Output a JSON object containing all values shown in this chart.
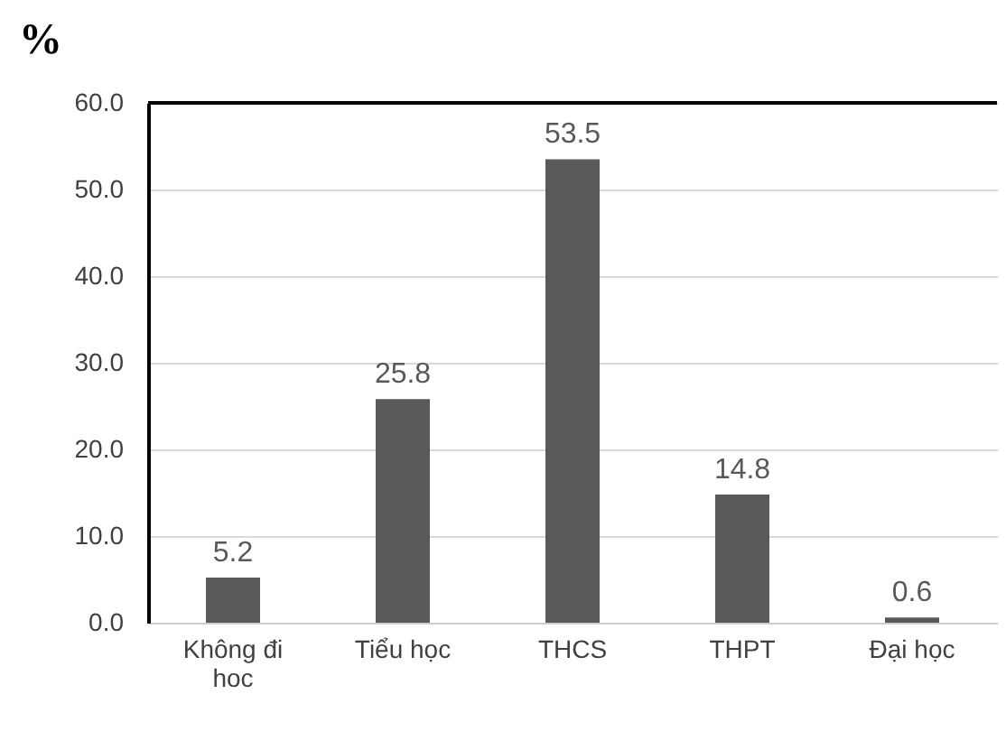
{
  "chart_data": {
    "type": "bar",
    "ylabel": "%",
    "categories": [
      "Không đi hoc",
      "Tiểu học",
      "THCS",
      "THPT",
      "Đại học"
    ],
    "values": [
      5.2,
      25.8,
      53.5,
      14.8,
      0.6
    ],
    "color": "#595959",
    "ylim": [
      0,
      60
    ],
    "yticks": [
      {
        "value": 0,
        "label": "0.0"
      },
      {
        "value": 10,
        "label": "10.0"
      },
      {
        "value": 20,
        "label": "20.0"
      },
      {
        "value": 30,
        "label": "30.0"
      },
      {
        "value": 40,
        "label": "40.0"
      },
      {
        "value": 50,
        "label": "50.0"
      },
      {
        "value": 60,
        "label": "60.0"
      }
    ],
    "grid": "y",
    "data_labels": true
  }
}
